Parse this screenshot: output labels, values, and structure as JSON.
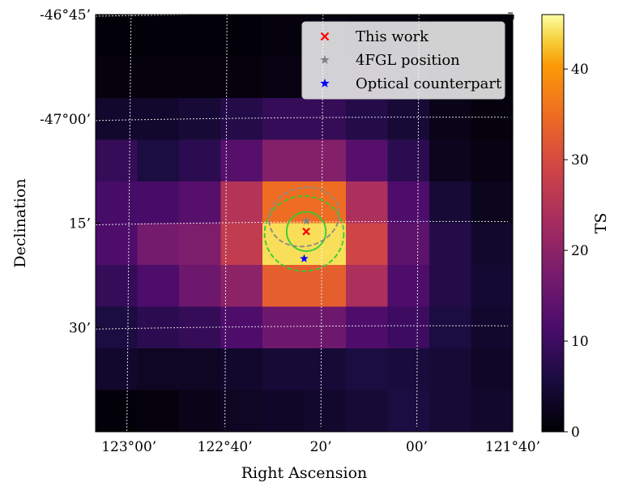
{
  "chart_data": {
    "type": "heatmap",
    "title": "",
    "xlabel": "Right Ascension",
    "ylabel": "Declination",
    "colorbar": {
      "label": "TS",
      "range": [
        0,
        46
      ],
      "ticks": [
        0,
        10,
        20,
        30,
        40
      ],
      "tick_labels": [
        "0",
        "10",
        "20",
        "30",
        "40"
      ]
    },
    "x_ticks": [
      {
        "label": "123°00’",
        "col": 0.8
      },
      {
        "label": "122°40’",
        "col": 3.1
      },
      {
        "label": "20’",
        "col": 5.4
      },
      {
        "label": "00’",
        "col": 7.7
      },
      {
        "label": "121°40’",
        "col": 10.0
      }
    ],
    "y_ticks": [
      {
        "label": "-46°45’",
        "row": 0.0
      },
      {
        "label": "-47°00’",
        "row": 2.5
      },
      {
        "label": "15’",
        "row": 5.0
      },
      {
        "label": "30’",
        "row": 7.5
      }
    ],
    "grid": "on",
    "grid_dec_rows": [
      0.0,
      2.5,
      5.0,
      7.5
    ],
    "grid_ra_curves": [
      {
        "cols": [
          0.85,
          0.75
        ]
      },
      {
        "cols": [
          3.15,
          3.1
        ]
      },
      {
        "cols": [
          5.45,
          5.4
        ]
      },
      {
        "cols": [
          7.75,
          7.7
        ]
      },
      {
        "cols": [
          10.05,
          10.0
        ]
      }
    ],
    "grid_cols": 10,
    "grid_rows": 10,
    "ts_values": [
      [
        0.5,
        0.5,
        0.5,
        0.5,
        1.0,
        1.5,
        1.0,
        1.0,
        0.5,
        0.5
      ],
      [
        1.0,
        1.0,
        1.0,
        1.0,
        1.5,
        2.0,
        2.5,
        1.5,
        1.0,
        0.5
      ],
      [
        4.0,
        4.0,
        5.0,
        7.0,
        9.0,
        9.0,
        7.0,
        5.0,
        2.0,
        1.0
      ],
      [
        9.0,
        6.0,
        8.0,
        13.0,
        19.0,
        19.0,
        13.0,
        8.0,
        2.5,
        1.5
      ],
      [
        11.0,
        11.0,
        13.0,
        25.0,
        35.0,
        35.0,
        24.0,
        12.0,
        5.0,
        2.5
      ],
      [
        12.0,
        17.0,
        18.0,
        27.0,
        44.0,
        44.0,
        29.0,
        14.0,
        7.0,
        4.0
      ],
      [
        9.0,
        12.0,
        16.0,
        20.0,
        33.0,
        33.0,
        24.0,
        12.0,
        7.0,
        4.5
      ],
      [
        6.0,
        8.0,
        9.0,
        12.0,
        16.0,
        16.0,
        12.0,
        10.0,
        6.0,
        4.0
      ],
      [
        4.0,
        3.0,
        3.0,
        4.0,
        5.0,
        5.0,
        6.0,
        5.5,
        5.0,
        3.5
      ],
      [
        0.5,
        1.0,
        2.0,
        3.0,
        3.5,
        4.0,
        5.0,
        6.0,
        5.0,
        4.0
      ]
    ],
    "markers": [
      {
        "label": "This work",
        "shape": "x",
        "color": "#ff0000",
        "col": 5.05,
        "row": 5.2
      },
      {
        "label": "4FGL position",
        "shape": "star",
        "color": "#808080",
        "col": 5.05,
        "row": 4.95
      },
      {
        "label": "Optical counterpart",
        "shape": "star",
        "color": "#0000ff",
        "col": 5.0,
        "row": 5.85
      }
    ],
    "contours": [
      {
        "name": "this-work-68",
        "color": "#33cc33",
        "dash": "solid",
        "col": 5.05,
        "row": 5.2,
        "rx": 0.47,
        "ry": 0.47
      },
      {
        "name": "this-work-95",
        "color": "#33cc33",
        "dash": "dashed",
        "col": 5.0,
        "row": 5.25,
        "rx": 0.95,
        "ry": 0.9
      },
      {
        "name": "4fgl-95",
        "color": "#888888",
        "dash": "dashed",
        "col": 5.0,
        "row": 4.85,
        "rx": 0.85,
        "ry": 0.7
      }
    ],
    "legend": {
      "position": "top-right",
      "entries": [
        {
          "label": "This work",
          "shape": "x",
          "color": "#ff0000"
        },
        {
          "label": "4FGL position",
          "shape": "star",
          "color": "#808080"
        },
        {
          "label": "Optical counterpart",
          "shape": "star",
          "color": "#0000ff"
        }
      ]
    }
  }
}
